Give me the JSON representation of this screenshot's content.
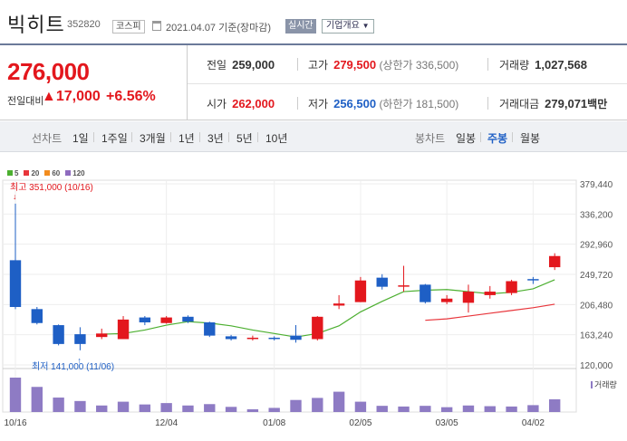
{
  "header": {
    "name": "빅히트",
    "code": "352820",
    "market": "코스피",
    "date": "2021.04.07 기준(장마감)",
    "realtime_button": "실시간",
    "company_info_button": "기업개요"
  },
  "summary": {
    "price": "276,000",
    "change_label": "전일대비",
    "change_value": "▲17,000",
    "change_percent": "+6.56%",
    "prev_close_label": "전일",
    "prev_close": "259,000",
    "high_label": "고가",
    "high": "279,500",
    "upper_limit": "(상한가 336,500)",
    "volume_label": "거래량",
    "volume": "1,027,568",
    "open_label": "시가",
    "open": "262,000",
    "low_label": "저가",
    "low": "256,500",
    "lower_limit": "(하한가 181,500)",
    "amount_label": "거래대금",
    "amount": "279,071",
    "amount_unit": "백만"
  },
  "period_bar": {
    "line_label": "선차트",
    "line_options": [
      "1일",
      "1주일",
      "3개월",
      "1년",
      "3년",
      "5년",
      "10년"
    ],
    "candle_label": "봉차트",
    "candle_options": [
      "일봉",
      "주봉",
      "월봉"
    ],
    "candle_selected": "주봉"
  },
  "colors": {
    "up": "#e3171d",
    "down": "#1e5fc5",
    "ma5": "#4caf30",
    "ma20": "#e8353b",
    "ma60": "#f28c1e",
    "ma120": "#8e6bbf",
    "volume": "#8e7bc4"
  },
  "legend": [
    {
      "label": "5",
      "color": "#4caf30"
    },
    {
      "label": "20",
      "color": "#e8353b"
    },
    {
      "label": "60",
      "color": "#f28c1e"
    },
    {
      "label": "120",
      "color": "#8e6bbf"
    }
  ],
  "chart_data": {
    "type": "candlestick",
    "y_ticks": [
      "379,440",
      "336,200",
      "292,960",
      "249,720",
      "206,480",
      "163,240",
      "120,000"
    ],
    "ylim": [
      120000,
      379440
    ],
    "x_ticks": [
      {
        "label": "10/16",
        "index": 0
      },
      {
        "label": "12/04",
        "index": 7
      },
      {
        "label": "01/08",
        "index": 12
      },
      {
        "label": "02/05",
        "index": 16
      },
      {
        "label": "03/05",
        "index": 20
      },
      {
        "label": "04/02",
        "index": 24
      }
    ],
    "high_annotation": "최고 351,000 (10/16)",
    "low_annotation": "최저 141,000 (11/06)",
    "volume_label": "거래량",
    "candles": [
      {
        "o": 270000,
        "h": 351000,
        "l": 200000,
        "c": 203000
      },
      {
        "o": 200000,
        "h": 203000,
        "l": 178000,
        "c": 180000
      },
      {
        "o": 177000,
        "h": 178000,
        "l": 148000,
        "c": 150000
      },
      {
        "o": 164000,
        "h": 174000,
        "l": 141000,
        "c": 150000
      },
      {
        "o": 160000,
        "h": 172000,
        "l": 157000,
        "c": 165000
      },
      {
        "o": 157000,
        "h": 190000,
        "l": 157000,
        "c": 185000
      },
      {
        "o": 188000,
        "h": 190000,
        "l": 177000,
        "c": 181000
      },
      {
        "o": 180000,
        "h": 190000,
        "l": 179000,
        "c": 188000
      },
      {
        "o": 189000,
        "h": 191000,
        "l": 180000,
        "c": 182000
      },
      {
        "o": 181000,
        "h": 182000,
        "l": 160000,
        "c": 162000
      },
      {
        "o": 161000,
        "h": 163000,
        "l": 155000,
        "c": 157000
      },
      {
        "o": 158000,
        "h": 162000,
        "l": 155000,
        "c": 159000
      },
      {
        "o": 159000,
        "h": 161000,
        "l": 155000,
        "c": 158000
      },
      {
        "o": 162000,
        "h": 177000,
        "l": 152000,
        "c": 156000
      },
      {
        "o": 157000,
        "h": 190000,
        "l": 155000,
        "c": 189000
      },
      {
        "o": 205000,
        "h": 220000,
        "l": 200000,
        "c": 208000
      },
      {
        "o": 210000,
        "h": 246000,
        "l": 210000,
        "c": 241000
      },
      {
        "o": 245000,
        "h": 250000,
        "l": 228000,
        "c": 232000
      },
      {
        "o": 234000,
        "h": 262000,
        "l": 225000,
        "c": 234000
      },
      {
        "o": 235000,
        "h": 236000,
        "l": 208000,
        "c": 210000
      },
      {
        "o": 210000,
        "h": 220000,
        "l": 207000,
        "c": 215000
      },
      {
        "o": 209000,
        "h": 235000,
        "l": 195000,
        "c": 225000
      },
      {
        "o": 220000,
        "h": 233000,
        "l": 215000,
        "c": 225000
      },
      {
        "o": 223000,
        "h": 242000,
        "l": 220000,
        "c": 240000
      },
      {
        "o": 243000,
        "h": 246000,
        "l": 236000,
        "c": 242000
      },
      {
        "o": 260000,
        "h": 280000,
        "l": 256000,
        "c": 276000
      }
    ],
    "ma5": [
      null,
      null,
      null,
      null,
      164000,
      165000,
      170000,
      177000,
      182000,
      180000,
      176000,
      170000,
      165000,
      160000,
      165000,
      176000,
      196000,
      211000,
      225000,
      227000,
      228000,
      225000,
      222000,
      224000,
      229000,
      242000
    ],
    "ma20": [
      null,
      null,
      null,
      null,
      null,
      null,
      null,
      null,
      null,
      null,
      null,
      null,
      null,
      null,
      null,
      null,
      null,
      null,
      null,
      184000,
      186000,
      190000,
      194000,
      198000,
      202000,
      207000
    ],
    "volume": [
      10,
      7.3,
      4.2,
      3.2,
      1.9,
      3.0,
      2.2,
      2.6,
      1.9,
      2.3,
      1.5,
      0.8,
      1.2,
      3.5,
      4.1,
      5.9,
      3.0,
      1.8,
      1.6,
      1.8,
      1.4,
      1.9,
      1.7,
      1.6,
      2.0,
      3.7
    ]
  }
}
